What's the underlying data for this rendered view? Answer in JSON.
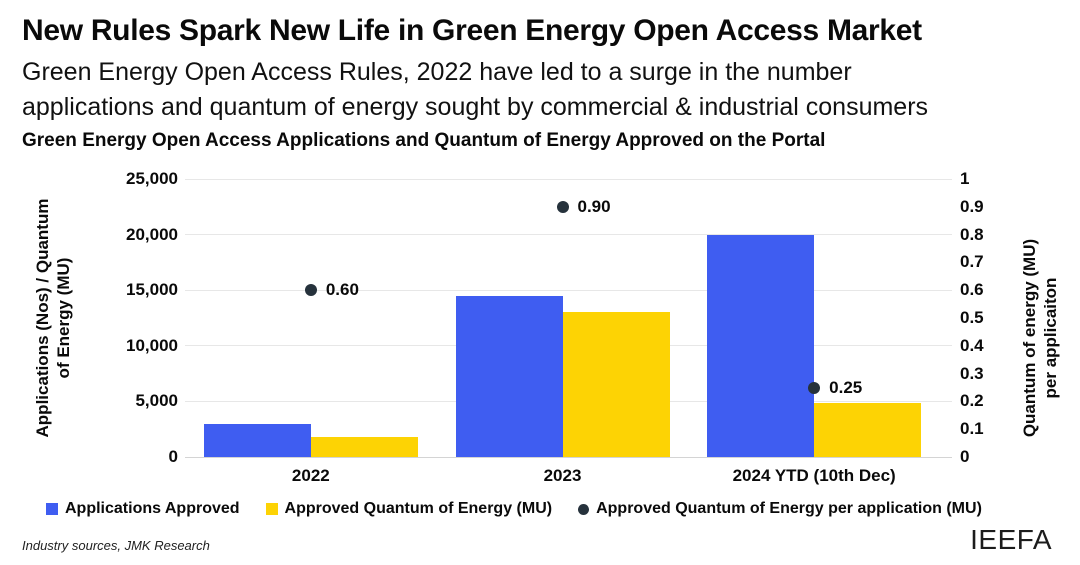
{
  "header": {
    "title": "New Rules Spark New Life in Green Energy Open Access Market",
    "subtitle_line1": "Green Energy Open Access Rules, 2022 have led to a surge in the number",
    "subtitle_line2": "applications and quantum of energy sought by commercial & industrial consumers",
    "chart_title": "Green Energy Open Access Applications and Quantum of Energy Approved on the Portal"
  },
  "chart_data": {
    "type": "bar",
    "categories": [
      "2022",
      "2023",
      "2024 YTD (10th Dec)"
    ],
    "series": [
      {
        "name": "Applications Approved",
        "type": "bar",
        "axis": "left",
        "color": "#3F5DF1",
        "values": [
          3000,
          14500,
          20000
        ]
      },
      {
        "name": "Approved Quantum of Energy (MU)",
        "type": "bar",
        "axis": "left",
        "color": "#FDD304",
        "values": [
          1800,
          13000,
          4900
        ]
      },
      {
        "name": "Approved Quantum of Energy per application (MU)",
        "type": "point",
        "axis": "right",
        "color": "#26323C",
        "values": [
          0.6,
          0.9,
          0.25
        ],
        "labels": [
          "0.60",
          "0.90",
          "0.25"
        ]
      }
    ],
    "left_axis": {
      "label_line1": "Applications (Nos) / Quantum",
      "label_line2": "of Energy (MU)",
      "ticks": [
        "25,000",
        "20,000",
        "15,000",
        "10,000",
        "5,000",
        "0"
      ],
      "min": 0,
      "max": 25000
    },
    "right_axis": {
      "label_line1": "Quantum of energy (MU)",
      "label_line2": "per applicaiton",
      "ticks": [
        "1",
        "0.9",
        "0.8",
        "0.7",
        "0.6",
        "0.5",
        "0.4",
        "0.3",
        "0.2",
        "0.1",
        "0"
      ],
      "min": 0,
      "max": 1
    },
    "grid": true,
    "legend_position": "bottom"
  },
  "footer": {
    "source": "Industry sources, JMK Research",
    "logo": "IEEFA"
  }
}
